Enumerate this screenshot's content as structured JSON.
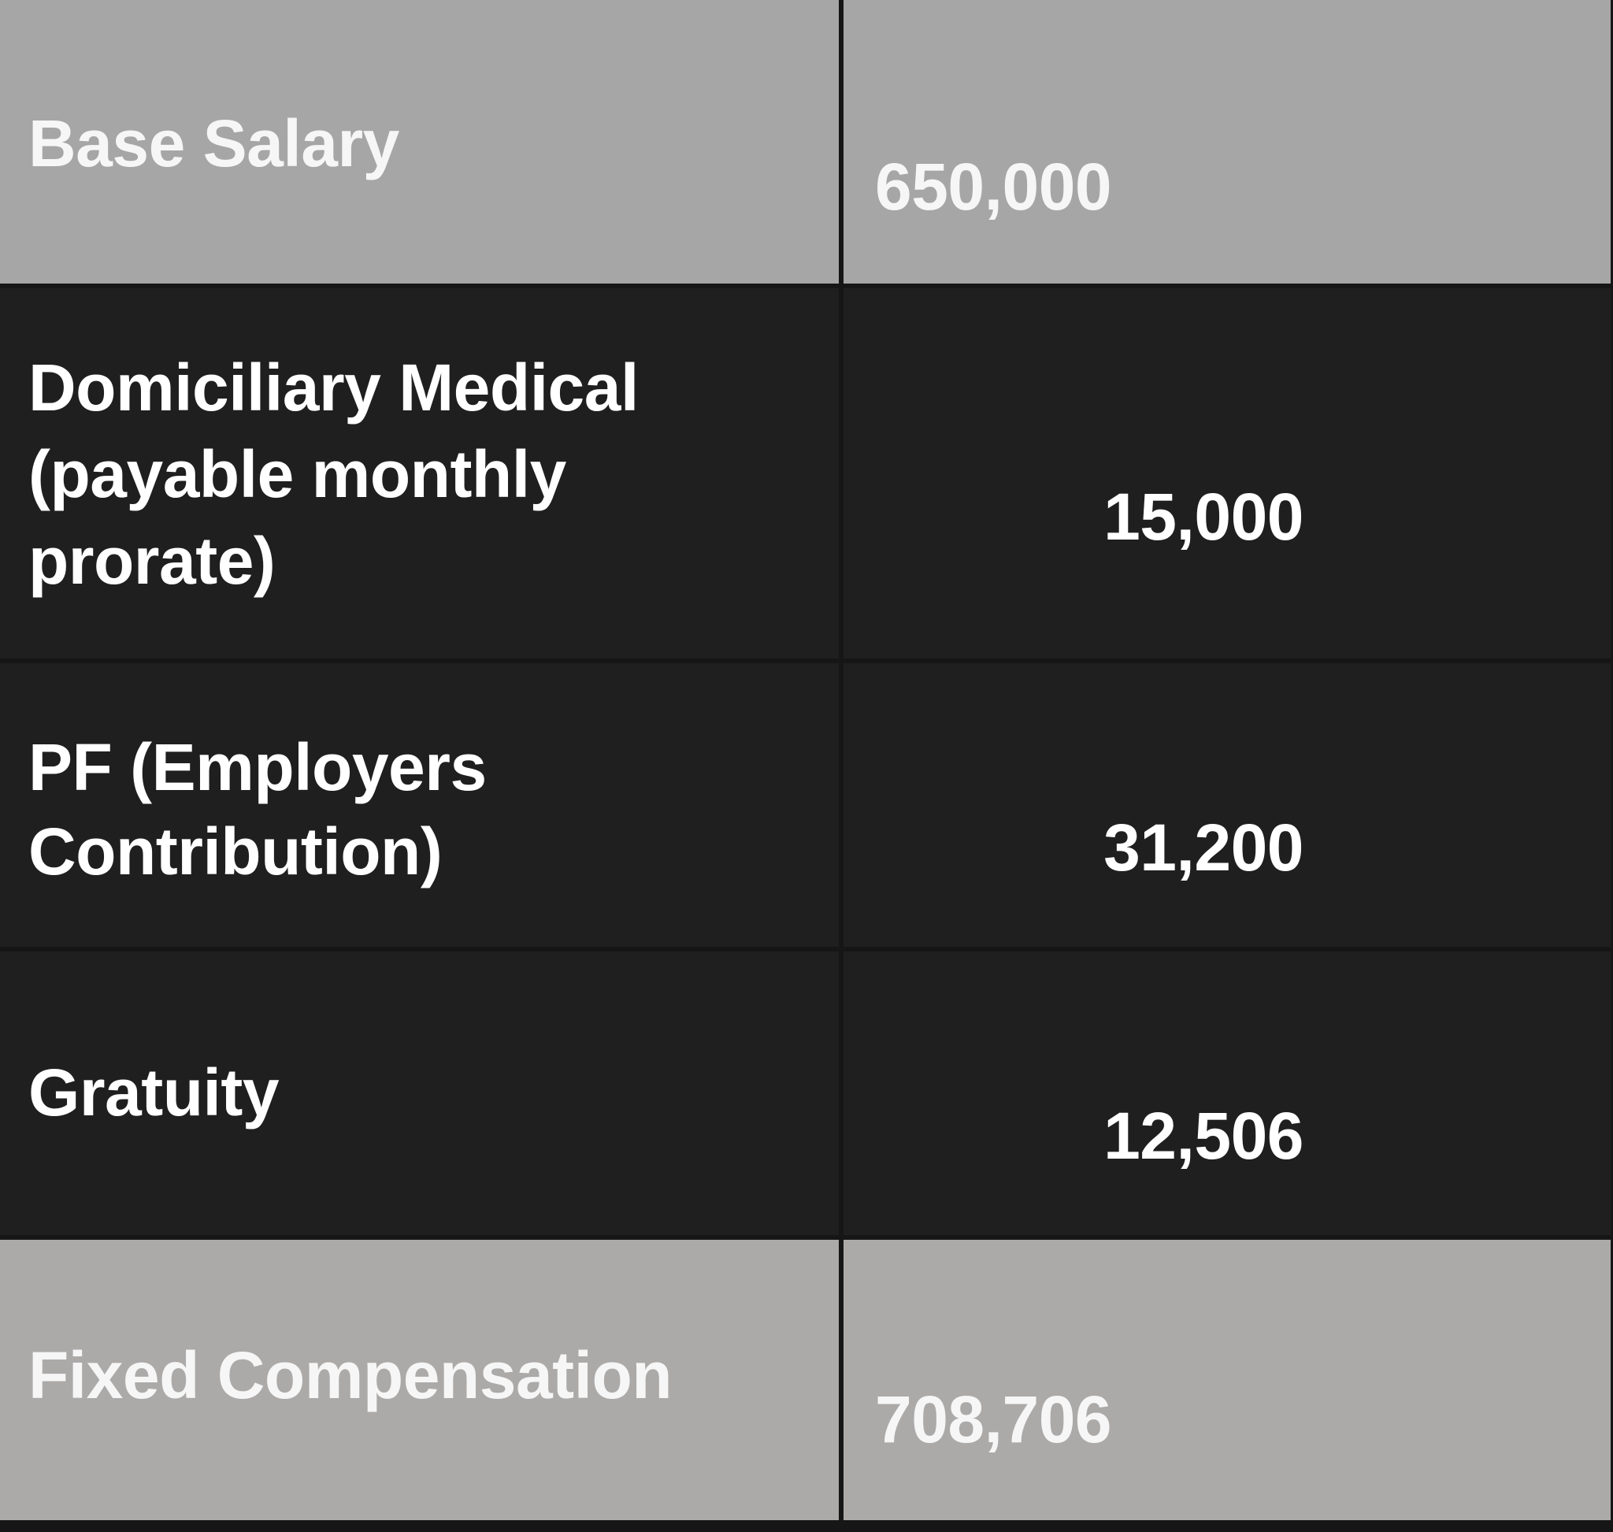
{
  "table": {
    "rows": [
      {
        "label": "Base Salary",
        "value": "650,000"
      },
      {
        "label_lines": [
          "Domiciliary Medical",
          "(payable monthly",
          "prorate)"
        ],
        "value": "15,000"
      },
      {
        "label_lines": [
          "PF (Employers",
          "Contribution)"
        ],
        "value": "31,200"
      },
      {
        "label": "Gratuity",
        "value": "12,506"
      },
      {
        "label": "Fixed Compensation",
        "value": "708,706"
      }
    ]
  },
  "colors": {
    "highlight_row": "#a6a6a6",
    "total_row": "#acaaa9",
    "body_row": "#1f1f1f",
    "grid_line": "#161616",
    "text": "#ffffff"
  }
}
